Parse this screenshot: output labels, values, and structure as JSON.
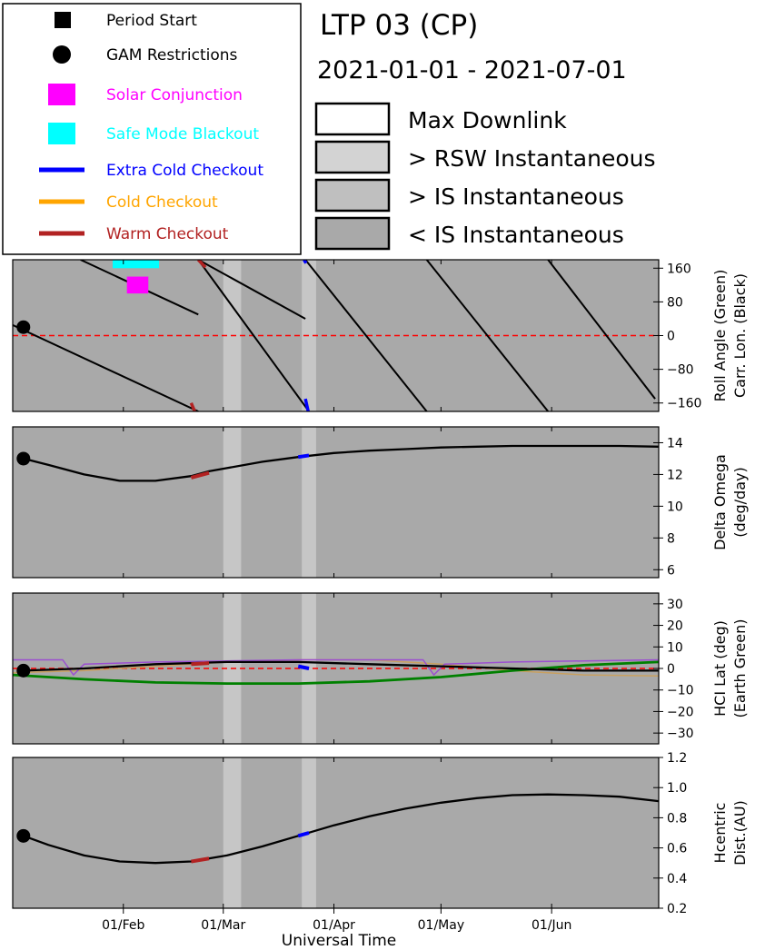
{
  "header": {
    "title": "LTP 03 (CP)",
    "date_range": "2021-01-01 - 2021-07-01"
  },
  "legend_left": [
    {
      "label": "Period Start",
      "marker": "square",
      "color": "#000000"
    },
    {
      "label": "GAM Restrictions",
      "marker": "circle",
      "color": "#000000"
    },
    {
      "label": "Solar Conjunction",
      "marker": "square-big",
      "color": "#ff00ff"
    },
    {
      "label": "Safe Mode Blackout",
      "marker": "square-big",
      "color": "#00ffff"
    },
    {
      "label": "Extra Cold Checkout",
      "marker": "line",
      "color": "#0000ff"
    },
    {
      "label": "Cold Checkout",
      "marker": "line",
      "color": "#ffa500"
    },
    {
      "label": "Warm Checkout",
      "marker": "line",
      "color": "#b22222"
    }
  ],
  "legend_right": [
    {
      "label": "Max Downlink",
      "color": "#ffffff"
    },
    {
      "label": "> RSW Instantaneous",
      "color": "#d3d3d3"
    },
    {
      "label": "> IS Instantaneous",
      "color": "#bfbfbf"
    },
    {
      "label": "< IS Instantaneous",
      "color": "#a9a9a9"
    }
  ],
  "colors": {
    "panel_bg": "#a9a9a9",
    "band": "#c6c6c6",
    "curve": "#000000",
    "zero_line": "#ff0000",
    "earth": "#008000",
    "purple": "#9b4fd0",
    "tan": "#c8a060",
    "warm": "#b22222",
    "extra_cold": "#0000ff",
    "magenta": "#ff00ff",
    "cyan": "#00ffff"
  },
  "chart_data": {
    "type": "line",
    "x_axis": {
      "label": "Universal Time",
      "range_day": [
        0,
        181
      ],
      "ticks": [
        {
          "label": "01/Feb",
          "day": 31
        },
        {
          "label": "01/Mar",
          "day": 59
        },
        {
          "label": "01/Apr",
          "day": 90
        },
        {
          "label": "01/May",
          "day": 120
        },
        {
          "label": "01/Jun",
          "day": 151
        }
      ]
    },
    "bands": [
      [
        59,
        64
      ],
      [
        81,
        85
      ]
    ],
    "panels": [
      {
        "id": "roll",
        "ylabel": [
          "Roll Angle (Green)",
          "Carr. Lon. (Black)"
        ],
        "ylim": [
          -180,
          180
        ],
        "yticks": [
          160,
          80,
          0,
          -80,
          -160
        ],
        "ytick_labels": [
          "160",
          "80",
          "0",
          "−80",
          "−160"
        ],
        "zero_line": true,
        "carrington_lines": [
          {
            "x": [
              0,
              52
            ],
            "y": [
              25,
              -180
            ]
          },
          {
            "x": [
              19,
              52
            ],
            "y": [
              180,
              50
            ]
          },
          {
            "x": [
              52,
              82
            ],
            "y": [
              180,
              40
            ]
          },
          {
            "x": [
              52,
              83
            ],
            "y": [
              180,
              -180
            ]
          },
          {
            "x": [
              82,
              116
            ],
            "y": [
              180,
              -180
            ]
          },
          {
            "x": [
              116,
              150
            ],
            "y": [
              180,
              -180
            ]
          },
          {
            "x": [
              150,
              180
            ],
            "y": [
              180,
              -150
            ]
          }
        ],
        "warm_segments": [
          {
            "x": [
              52,
              54
            ],
            "y": [
              180,
              162
            ]
          },
          {
            "x": [
              50,
              51
            ],
            "y": [
              -160,
              -180
            ]
          }
        ],
        "extra_cold_segments": [
          {
            "x": [
              82,
              82.8
            ],
            "y": [
              -150,
              -180
            ]
          },
          {
            "x": [
              81.6,
              82.2
            ],
            "y": [
              180,
              172
            ]
          }
        ],
        "safe_mode_rect": {
          "x": [
            28,
            41
          ],
          "y": [
            160,
            180
          ]
        },
        "solar_conj_rect": {
          "x": [
            32,
            38
          ],
          "y": [
            100,
            140
          ]
        },
        "gam": {
          "x": 3,
          "y": 20
        }
      },
      {
        "id": "domega",
        "ylabel": [
          "Delta Omega",
          "(deg/day)"
        ],
        "ylim": [
          5.5,
          15
        ],
        "yticks": [
          14,
          12,
          10,
          8,
          6
        ],
        "ytick_labels": [
          "14",
          "12",
          "10",
          "8",
          "6"
        ],
        "curve": {
          "x": [
            3,
            10,
            20,
            30,
            40,
            50,
            55,
            60,
            70,
            80,
            90,
            100,
            110,
            120,
            130,
            140,
            150,
            160,
            170,
            181
          ],
          "y": [
            13.0,
            12.6,
            12.0,
            11.6,
            11.6,
            11.9,
            12.2,
            12.4,
            12.8,
            13.1,
            13.35,
            13.5,
            13.6,
            13.7,
            13.75,
            13.8,
            13.8,
            13.8,
            13.8,
            13.75
          ]
        },
        "warm_segment": {
          "x": [
            50,
            55
          ],
          "y": [
            11.8,
            12.1
          ]
        },
        "extra_cold_segment": {
          "x": [
            80,
            83
          ],
          "y": [
            13.1,
            13.2
          ]
        },
        "gam": {
          "x": 3,
          "y": 13.0
        }
      },
      {
        "id": "hcilat",
        "ylabel": [
          "HCI Lat (deg)",
          "(Earth Green)"
        ],
        "ylim": [
          -35,
          35
        ],
        "yticks": [
          30,
          20,
          10,
          0,
          -10,
          -20,
          -30
        ],
        "ytick_labels": [
          "30",
          "20",
          "10",
          "0",
          "−10",
          "−20",
          "−30"
        ],
        "zero_line": true,
        "curve": {
          "x": [
            3,
            20,
            40,
            60,
            80,
            100,
            120,
            140,
            160,
            181
          ],
          "y": [
            -1,
            0,
            2,
            3,
            3,
            2,
            1,
            0,
            -1,
            -1
          ]
        },
        "earth": {
          "x": [
            0,
            20,
            40,
            60,
            80,
            100,
            120,
            140,
            160,
            181
          ],
          "y": [
            -3,
            -5,
            -6.5,
            -7,
            -7,
            -6,
            -4,
            -1,
            1.5,
            3
          ]
        },
        "purple": {
          "x": [
            0,
            14,
            17,
            20,
            40,
            60,
            80,
            100,
            115,
            118,
            121,
            140,
            160,
            181
          ],
          "y": [
            4,
            4,
            -3,
            2,
            3,
            3.5,
            4,
            4,
            4,
            -3,
            2,
            3,
            3.5,
            4
          ]
        },
        "tan": {
          "x": [
            0,
            20,
            40,
            60,
            80,
            100,
            120,
            140,
            160,
            181
          ],
          "y": [
            -2,
            -1,
            1,
            3,
            4,
            4,
            2,
            -1,
            -3,
            -3.5
          ]
        },
        "warm_segment": {
          "x": [
            50,
            55
          ],
          "y": [
            2,
            2.5
          ]
        },
        "extra_cold_segment": {
          "x": [
            80,
            83
          ],
          "y": [
            1,
            0
          ]
        },
        "gam": {
          "x": 3,
          "y": -1
        }
      },
      {
        "id": "dist",
        "ylabel": [
          "Hcentric",
          "Dist.(AU)"
        ],
        "ylim": [
          0.2,
          1.2
        ],
        "yticks": [
          1.2,
          1.0,
          0.8,
          0.6,
          0.4,
          0.2
        ],
        "ytick_labels": [
          "1.2",
          "1.0",
          "0.8",
          "0.6",
          "0.4",
          "0.2"
        ],
        "curve": {
          "x": [
            3,
            10,
            20,
            30,
            40,
            50,
            60,
            70,
            80,
            90,
            100,
            110,
            120,
            130,
            140,
            150,
            160,
            170,
            181
          ],
          "y": [
            0.68,
            0.62,
            0.55,
            0.51,
            0.5,
            0.51,
            0.55,
            0.61,
            0.68,
            0.75,
            0.81,
            0.86,
            0.9,
            0.93,
            0.95,
            0.955,
            0.95,
            0.94,
            0.91
          ]
        },
        "warm_segment": {
          "x": [
            50,
            55
          ],
          "y": [
            0.51,
            0.53
          ]
        },
        "extra_cold_segment": {
          "x": [
            80,
            83
          ],
          "y": [
            0.68,
            0.7
          ]
        },
        "gam": {
          "x": 3,
          "y": 0.68
        }
      }
    ]
  }
}
